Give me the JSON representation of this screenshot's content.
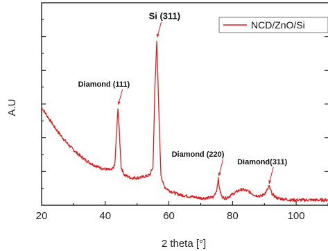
{
  "chart_data": {
    "type": "line",
    "title": "",
    "xlabel": "2 theta [°]",
    "ylabel": "A.U",
    "xlim": [
      20,
      110
    ],
    "ylim": [
      0,
      100
    ],
    "x_ticks": [
      20,
      40,
      60,
      80,
      100
    ],
    "y_tick_labels": false,
    "grid": false,
    "legend": {
      "placement": "top-right",
      "entries": [
        "NCD/ZnO/Si"
      ]
    },
    "colors": {
      "series": "#e31a1c",
      "annotation_arrow": "#e31a1c",
      "axis": "#000000"
    },
    "series": [
      {
        "name": "NCD/ZnO/Si",
        "x": [
          20,
          22,
          24,
          26,
          28,
          30,
          32,
          34,
          36,
          38,
          40,
          42,
          43,
          43.5,
          44,
          44.5,
          45,
          46,
          48,
          50,
          52,
          54,
          55,
          55.6,
          56.2,
          56.8,
          57.5,
          58.5,
          60,
          62,
          64,
          66,
          68,
          70,
          72,
          74,
          75,
          75.5,
          76,
          76.6,
          77.3,
          78,
          80,
          82,
          83,
          85,
          87,
          89,
          90.5,
          91.5,
          92.5,
          94,
          96,
          98,
          100,
          102,
          104,
          106,
          108,
          110
        ],
        "y": [
          50,
          45,
          40,
          35.5,
          31.5,
          28,
          25,
          22.5,
          20.5,
          19,
          18,
          17.5,
          20,
          35,
          50,
          35,
          19,
          15,
          13.5,
          13.5,
          14,
          15,
          19,
          60,
          85,
          50,
          15,
          9,
          7,
          5.5,
          4.5,
          4,
          3.5,
          3,
          3,
          3.5,
          7,
          13,
          7,
          4,
          3,
          3,
          5,
          7,
          7.5,
          6.5,
          4.5,
          4,
          6,
          9,
          5,
          3,
          2.5,
          2,
          2,
          2,
          2,
          2,
          2,
          2
        ]
      }
    ],
    "annotations": [
      {
        "text": "Diamond (111)",
        "x": 44.1,
        "y": 50
      },
      {
        "text": "Si (311)",
        "x": 56.3,
        "y": 85
      },
      {
        "text": "Diamond (220)",
        "x": 75.7,
        "y": 13
      },
      {
        "text": "Diamond(311)",
        "x": 91.5,
        "y": 9
      }
    ]
  }
}
